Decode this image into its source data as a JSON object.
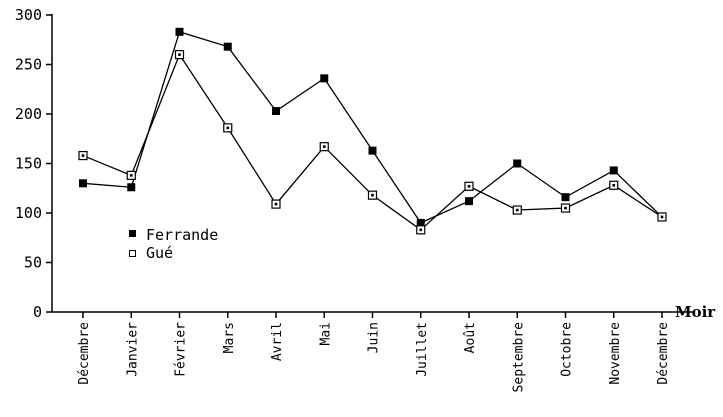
{
  "chart_data": {
    "type": "line",
    "categories": [
      "Décembre",
      "Janvier",
      "Février",
      "Mars",
      "Avril",
      "Mai",
      "Juin",
      "Juillet",
      "Août",
      "Septembre",
      "Octobre",
      "Novembre",
      "Décembre"
    ],
    "series": [
      {
        "name": "Ferrande",
        "marker": "filled-square",
        "values": [
          130,
          126,
          283,
          268,
          203,
          236,
          163,
          90,
          112,
          150,
          116,
          143,
          96
        ]
      },
      {
        "name": "Gué",
        "marker": "hollow-square",
        "values": [
          158,
          138,
          260,
          186,
          109,
          167,
          118,
          83,
          127,
          103,
          105,
          128,
          96
        ]
      }
    ],
    "title": "",
    "xlabel": "Moir",
    "ylabel": "",
    "ylim": [
      0,
      300
    ],
    "yticks": [
      "0",
      "50",
      "100",
      "150",
      "200",
      "250",
      "300"
    ],
    "grid": false,
    "legend_position": "left"
  }
}
